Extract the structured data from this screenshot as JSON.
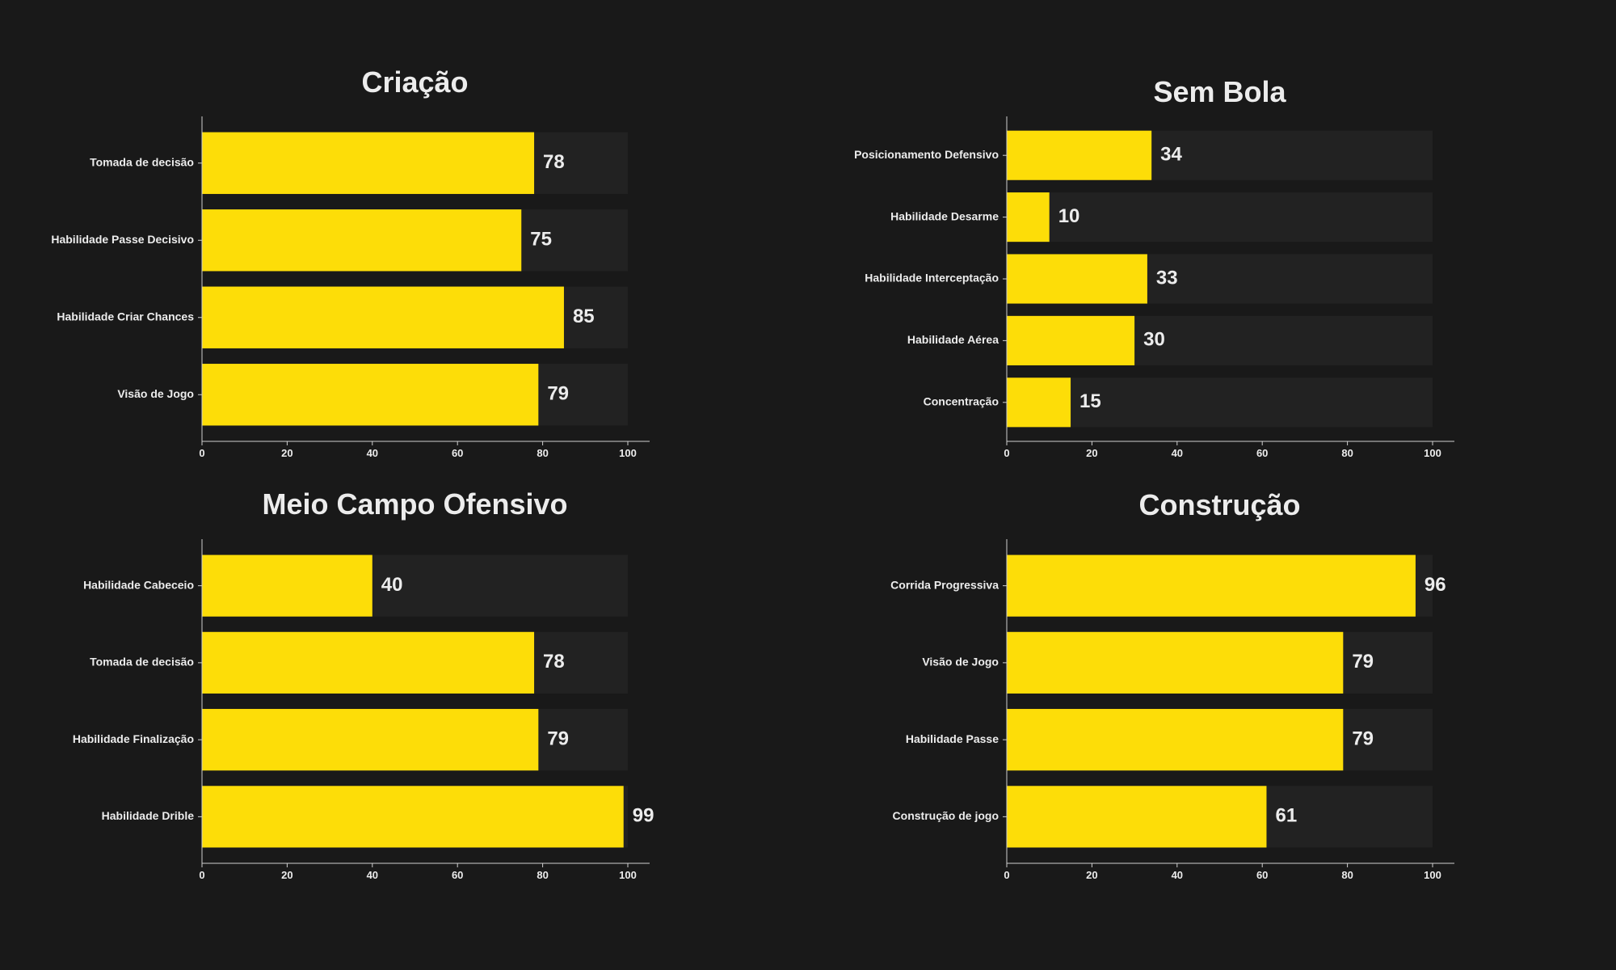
{
  "colors": {
    "background": "#191919",
    "bar": "#fddd08",
    "track": "#222222",
    "text": "#ececec",
    "axis": "#cfcfcf"
  },
  "chart_data": [
    {
      "type": "bar",
      "orientation": "horizontal",
      "title": "Criação",
      "categories": [
        "Tomada de decisão",
        "Habilidade Passe Decisivo",
        "Habilidade Criar Chances",
        "Visão de Jogo"
      ],
      "values": [
        78,
        75,
        85,
        79
      ],
      "xlim": [
        0,
        100
      ],
      "xticks": [
        "0",
        "20",
        "40",
        "60",
        "80",
        "100"
      ],
      "grid": false
    },
    {
      "type": "bar",
      "orientation": "horizontal",
      "title": "Sem Bola",
      "categories": [
        "Posicionamento Defensivo",
        "Habilidade Desarme",
        "Habilidade Interceptação",
        "Habilidade Aérea",
        "Concentração"
      ],
      "values": [
        34,
        10,
        33,
        30,
        15
      ],
      "xlim": [
        0,
        100
      ],
      "xticks": [
        "0",
        "20",
        "40",
        "60",
        "80",
        "100"
      ],
      "grid": false
    },
    {
      "type": "bar",
      "orientation": "horizontal",
      "title": "Meio Campo Ofensivo",
      "categories": [
        "Habilidade Cabeceio",
        "Tomada de decisão",
        "Habilidade Finalização",
        "Habilidade Drible"
      ],
      "values": [
        40,
        78,
        79,
        99
      ],
      "xlim": [
        0,
        100
      ],
      "xticks": [
        "0",
        "20",
        "40",
        "60",
        "80",
        "100"
      ],
      "grid": false
    },
    {
      "type": "bar",
      "orientation": "horizontal",
      "title": "Construção",
      "categories": [
        "Corrida Progressiva",
        "Visão de Jogo",
        "Habilidade Passe",
        "Construção de jogo"
      ],
      "values": [
        96,
        79,
        79,
        61
      ],
      "xlim": [
        0,
        100
      ],
      "xticks": [
        "0",
        "20",
        "40",
        "60",
        "80",
        "100"
      ],
      "grid": false
    }
  ]
}
